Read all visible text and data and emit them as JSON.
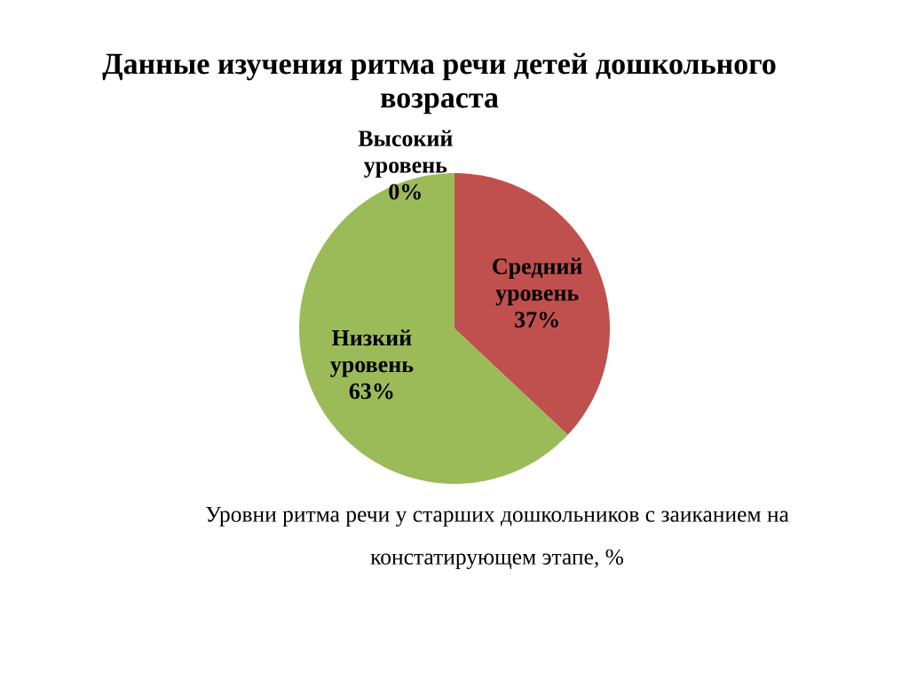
{
  "chart_data": {
    "type": "pie",
    "title": "Данные изучения ритма речи детей дошкольного возраста",
    "categories": [
      "Высокий уровень",
      "Средний уровень",
      "Низкий уровень"
    ],
    "values": [
      0,
      37,
      63
    ],
    "colors": [
      null,
      "#c0504d",
      "#9bbb59"
    ],
    "value_labels": [
      "0%",
      "37%",
      "63%"
    ],
    "annotations": [
      "Уровни ритма речи у старших дошкольников с заиканием на констатирующем этапе, %"
    ]
  }
}
